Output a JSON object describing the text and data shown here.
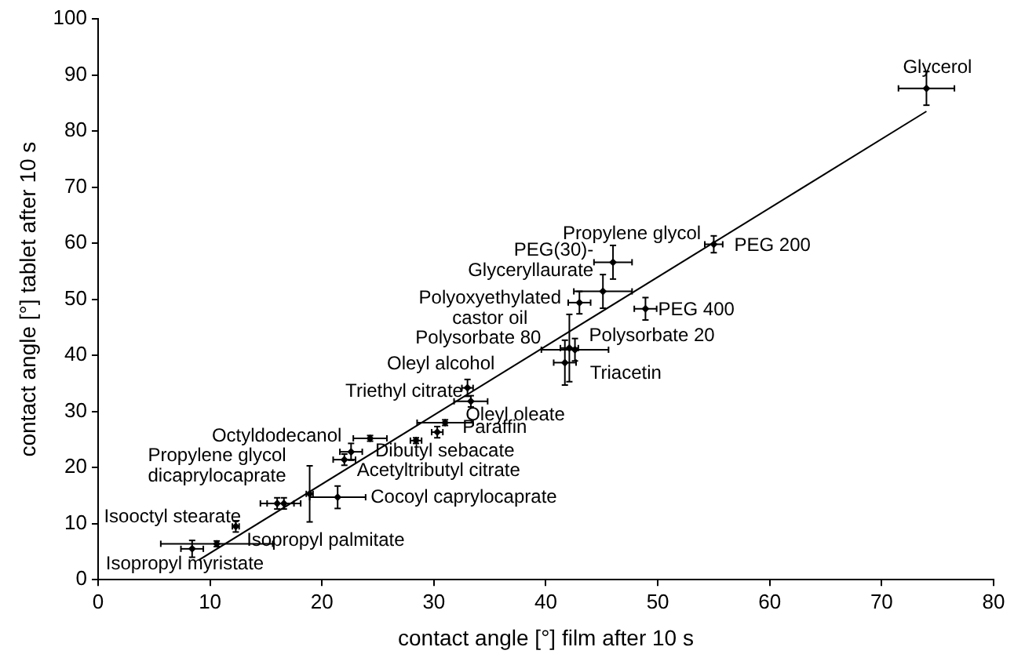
{
  "chart_data": {
    "type": "scatter",
    "xlabel": "contact angle [°] film after 10 s",
    "ylabel": "contact angle [°] tablet after 10 s",
    "xlim": [
      0,
      80
    ],
    "xticks": [
      0,
      10,
      20,
      30,
      40,
      50,
      60,
      70,
      80
    ],
    "ylim": [
      0,
      100
    ],
    "yticks": [
      0,
      10,
      20,
      30,
      40,
      50,
      60,
      70,
      80,
      90,
      100
    ],
    "grid": false,
    "legend": false,
    "series": [
      {
        "type": "scatter",
        "marker": "diamond",
        "color": "#000000",
        "x": [
          74,
          55,
          46,
          45.1,
          43,
          48.9,
          42.1,
          42.6,
          41.7,
          33,
          33.3,
          31,
          30.3,
          28.4,
          24.3,
          22.6,
          22,
          18.9,
          21.4,
          16,
          16.6,
          12.3,
          10.6,
          8.4
        ],
        "values": [
          87.6,
          59.8,
          56.6,
          51.4,
          49.4,
          48.3,
          41.3,
          41,
          38.7,
          34.2,
          31.8,
          28,
          26.3,
          24.8,
          25.2,
          22.8,
          21.4,
          15.3,
          14.7,
          13.6,
          13.6,
          9.5,
          6.4,
          5.5
        ],
        "xerrors": [
          2.5,
          0.8,
          1.7,
          2.6,
          1,
          1,
          0.8,
          3,
          1,
          0.5,
          1.5,
          2.5,
          0.5,
          0.5,
          1.5,
          1,
          1,
          0.3,
          2.5,
          1.5,
          1.5,
          0.3,
          5,
          1
        ],
        "errors": [
          3,
          1.5,
          3,
          3,
          2,
          2,
          6,
          2,
          4,
          1.5,
          1,
          0.5,
          1,
          0.5,
          0.5,
          1.5,
          1,
          5,
          2,
          1,
          1,
          1,
          0.5,
          1.5
        ]
      },
      {
        "type": "line",
        "color": "#000000",
        "x": [
          9,
          74
        ],
        "values": [
          3.5,
          83.5
        ]
      }
    ],
    "annotations": [
      {
        "text": "Glycerol",
        "x": 74,
        "y": 87.6
      },
      {
        "text": "PEG 200",
        "x": 55,
        "y": 59.8
      },
      {
        "text": "Propylene glycol",
        "x": 46,
        "y": 56.6
      },
      {
        "text": "PEG(30)-\nGlyceryllaurate",
        "x": 45.1,
        "y": 51.4
      },
      {
        "text": "Polyoxyethylated\ncastor oil",
        "x": 43,
        "y": 49.4
      },
      {
        "text": "PEG 400",
        "x": 48.9,
        "y": 48.3
      },
      {
        "text": "Polysorbate 80",
        "x": 42.1,
        "y": 41.3
      },
      {
        "text": "Polysorbate 20",
        "x": 42.6,
        "y": 41
      },
      {
        "text": "Triacetin",
        "x": 41.7,
        "y": 38.7
      },
      {
        "text": "Oleyl alcohol",
        "x": 33,
        "y": 34.2
      },
      {
        "text": "Triethyl citrate",
        "x": 33.3,
        "y": 31.8
      },
      {
        "text": "Oleyl oleate",
        "x": 31,
        "y": 28
      },
      {
        "text": "Paraffin",
        "x": 30.3,
        "y": 26.3
      },
      {
        "text": "Dibutyl sebacate",
        "x": 28.4,
        "y": 24.8
      },
      {
        "text": "Octyldodecanol",
        "x": 22.6,
        "y": 22.8
      },
      {
        "text": "Acetyltributyl citrate",
        "x": 22,
        "y": 21.4
      },
      {
        "text": "Propylene glycol\ndicaprylocaprate",
        "x": 18.9,
        "y": 15.3
      },
      {
        "text": "Cocoyl caprylocaprate",
        "x": 21.4,
        "y": 14.7
      },
      {
        "text": "Isooctyl stearate",
        "x": 12.3,
        "y": 9.5
      },
      {
        "text": "Isopropyl palmitate",
        "x": 10.6,
        "y": 6.4
      },
      {
        "text": "Isopropyl myristate",
        "x": 8.4,
        "y": 5.5
      }
    ]
  }
}
